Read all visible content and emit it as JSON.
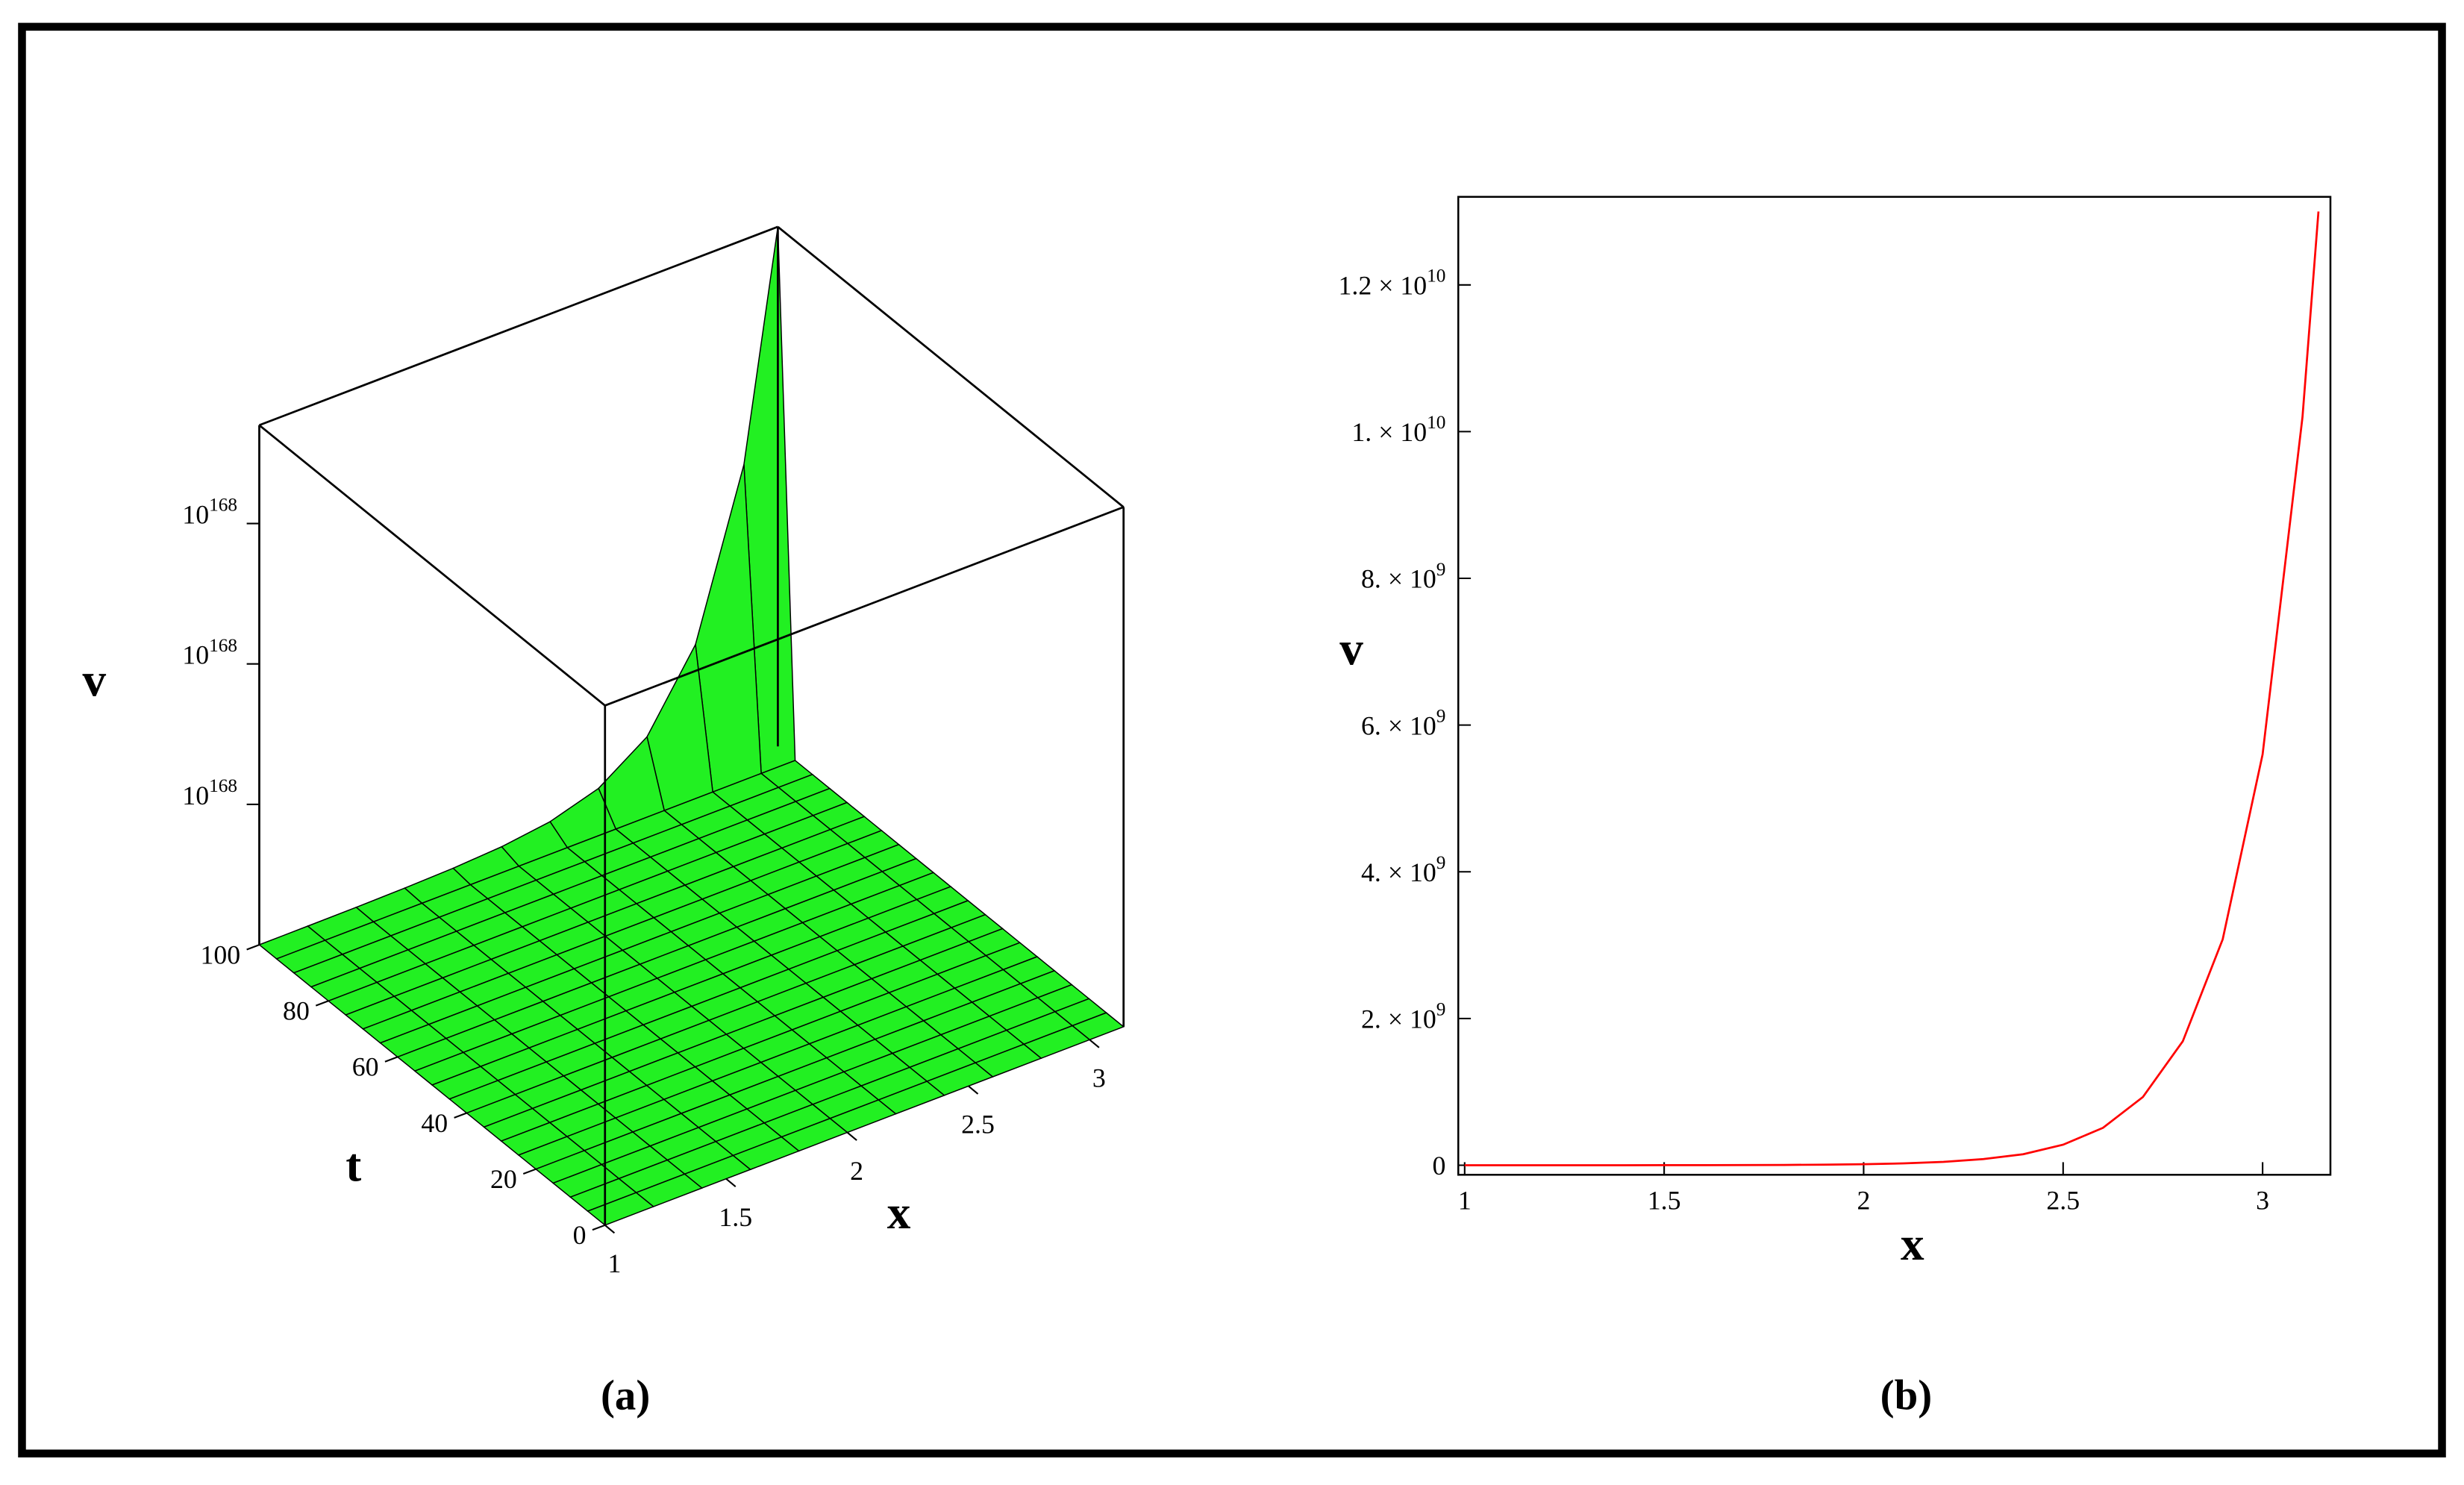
{
  "chart_data": [
    {
      "type": "surface",
      "caption": "(a)",
      "xlabel": "x",
      "ylabel": "t",
      "zlabel": "v",
      "color": "#22f022",
      "x": [
        1,
        1.2,
        1.4,
        1.6,
        1.8,
        2,
        2.2,
        2.4,
        2.6,
        2.8,
        3,
        3.14
      ],
      "y": [
        0,
        5,
        10,
        15,
        20,
        25,
        30,
        35,
        40,
        45,
        50,
        55,
        60,
        65,
        70,
        75,
        80,
        85,
        90,
        95,
        100
      ],
      "values": [
        [
          0,
          0,
          0,
          0,
          0,
          0,
          0,
          0,
          0,
          0,
          0,
          0
        ],
        [
          0,
          0,
          0,
          0,
          0,
          0,
          0,
          0,
          0,
          0,
          0,
          0
        ],
        [
          0,
          0,
          0,
          0,
          0,
          0,
          0,
          0,
          0,
          0,
          0,
          0
        ],
        [
          0,
          0,
          0,
          0,
          0,
          0,
          0,
          0,
          0,
          0,
          0,
          0
        ],
        [
          0,
          0,
          0,
          0,
          0,
          0,
          0,
          0,
          0,
          0,
          0,
          0
        ],
        [
          0,
          0,
          0,
          0,
          0,
          0,
          0,
          0,
          0,
          0,
          0,
          0
        ],
        [
          0,
          0,
          0,
          0,
          0,
          0,
          0,
          0,
          0,
          0,
          0,
          0
        ],
        [
          0,
          0,
          0,
          0,
          0,
          0,
          0,
          0,
          0,
          0,
          0,
          0
        ],
        [
          0,
          0,
          0,
          0,
          0,
          0,
          0,
          0,
          0,
          0,
          0,
          0
        ],
        [
          0,
          0,
          0,
          0,
          0,
          0,
          0,
          0,
          0,
          0,
          0,
          0
        ],
        [
          0,
          0,
          0,
          0,
          0,
          0,
          0,
          0,
          0,
          0,
          0,
          0
        ],
        [
          0,
          0,
          0,
          0,
          0,
          0,
          0,
          0,
          0,
          0,
          0,
          0
        ],
        [
          0,
          0,
          0,
          0,
          0,
          0,
          0,
          0,
          0,
          0,
          0,
          0
        ],
        [
          0,
          0,
          0,
          0,
          0,
          0,
          0,
          0,
          0,
          0,
          0,
          0
        ],
        [
          0,
          0,
          0,
          0,
          0,
          0,
          0,
          0,
          0,
          0,
          0,
          0
        ],
        [
          0,
          0,
          0,
          0,
          0,
          0,
          0,
          0,
          0,
          0,
          0,
          0
        ],
        [
          0,
          0,
          0,
          0,
          0,
          0,
          0,
          0,
          0,
          0,
          0,
          0
        ],
        [
          0,
          0,
          0,
          0,
          0,
          0,
          0,
          0,
          0,
          0,
          0,
          0
        ],
        [
          0,
          0,
          0,
          0,
          0,
          0,
          0,
          0,
          0,
          0,
          0,
          0
        ],
        [
          0,
          0,
          0,
          0,
          0,
          0,
          0,
          0,
          0,
          0,
          0,
          0
        ],
        [
          1.4e+165,
          3.2e+165,
          7e+165,
          1.6e+166,
          3.5e+166,
          7.7e+166,
          1.7e+167,
          3.8e+167,
          8.5e+167,
          1.9e+168,
          4.2e+168,
          7.4e+168
        ]
      ],
      "xlim": [
        1,
        3.14
      ],
      "ylim": [
        0,
        100
      ],
      "zlim": [
        0,
        7.4e+168
      ],
      "xticks": [
        1,
        1.5,
        2,
        2.5,
        3
      ],
      "yticks": [
        0,
        20,
        40,
        60,
        80,
        100
      ],
      "zticks": [
        {
          "value": 2e+168,
          "label": "10",
          "exponent": "168"
        },
        {
          "value": 4e+168,
          "label": "10",
          "exponent": "168"
        },
        {
          "value": 6e+168,
          "label": "10",
          "exponent": "168"
        }
      ]
    },
    {
      "type": "line",
      "caption": "(b)",
      "xlabel": "x",
      "ylabel": "v",
      "x": [
        1,
        1.1,
        1.2,
        1.3,
        1.4,
        1.5,
        1.6,
        1.7,
        1.8,
        1.9,
        2,
        2.1,
        2.2,
        2.3,
        2.4,
        2.5,
        2.6,
        2.7,
        2.8,
        2.9,
        3,
        3.1,
        3.14
      ],
      "series": [
        {
          "color": "#ff0000",
          "values": [
            34000.0,
            63000.0,
            110000.0,
            210000.0,
            380000.0,
            690000.0,
            1300000.0,
            2300000.0,
            4200000.0,
            7600000.0,
            14000000.0,
            25000000.0,
            46000000.0,
            84000000.0,
            150000000.0,
            280000000.0,
            510000000.0,
            930000000.0,
            1690000000.0,
            3080000000.0,
            5600000000.0,
            10200000000.0,
            13000000000.0
          ]
        }
      ],
      "xlim": [
        0.984,
        3.17
      ],
      "ylim": [
        -130000000.0,
        13200000000.0
      ],
      "xticks": [
        1,
        1.5,
        2,
        2.5,
        3
      ],
      "yticks": [
        0,
        {
          "value": 2000000000.0,
          "label": "2. × 10",
          "exponent": "9"
        },
        {
          "value": 4000000000.0,
          "label": "4. × 10",
          "exponent": "9"
        },
        {
          "value": 6000000000.0,
          "label": "6. × 10",
          "exponent": "9"
        },
        {
          "value": 8000000000.0,
          "label": "8. × 10",
          "exponent": "9"
        },
        {
          "value": 10000000000.0,
          "label": "1. × 10",
          "exponent": "10"
        },
        {
          "value": 12000000000.0,
          "label": "1.2 × 10",
          "exponent": "10"
        }
      ]
    }
  ]
}
